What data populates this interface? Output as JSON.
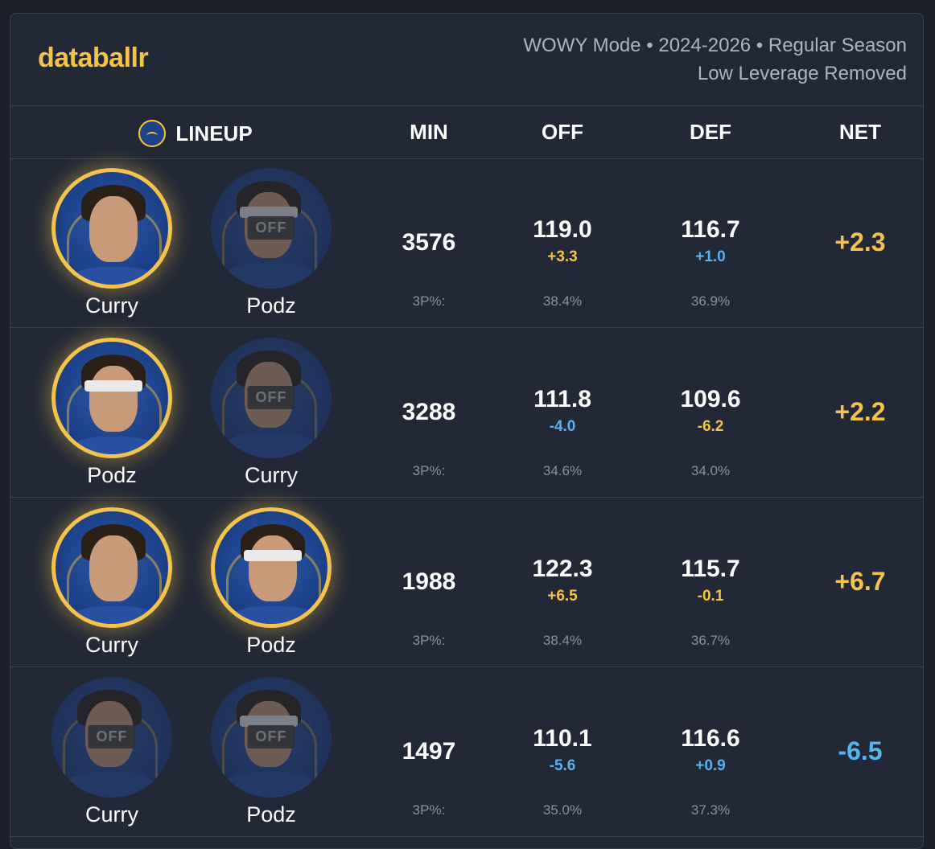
{
  "header": {
    "logo": "databallr",
    "meta_line1": "WOWY Mode • 2024-2026 • Regular Season",
    "meta_line2": "Low Leverage Removed"
  },
  "columns": {
    "lineup": "LINEUP",
    "min": "MIN",
    "off": "OFF",
    "def": "DEF",
    "net": "NET",
    "team_logo_icon": "warriors-logo-icon"
  },
  "colors": {
    "accent_yellow": "#f3c34d",
    "accent_blue": "#56b4f0",
    "background": "#222836"
  },
  "rows": [
    {
      "p1": {
        "name": "Curry",
        "status": "on",
        "off_label": ""
      },
      "p2": {
        "name": "Podz",
        "status": "off",
        "off_label": "OFF"
      },
      "min": "3576",
      "off": "119.0",
      "off_delta": "+3.3",
      "off_delta_color": "yellow",
      "def": "116.7",
      "def_delta": "+1.0",
      "def_delta_color": "blue",
      "net": "+2.3",
      "net_color": "yellow",
      "tp_label": "3P%:",
      "tp_off": "38.4%",
      "tp_def": "36.9%"
    },
    {
      "p1": {
        "name": "Podz",
        "status": "on",
        "off_label": ""
      },
      "p2": {
        "name": "Curry",
        "status": "off",
        "off_label": "OFF"
      },
      "min": "3288",
      "off": "111.8",
      "off_delta": "-4.0",
      "off_delta_color": "blue",
      "def": "109.6",
      "def_delta": "-6.2",
      "def_delta_color": "yellow",
      "net": "+2.2",
      "net_color": "yellow",
      "tp_label": "3P%:",
      "tp_off": "34.6%",
      "tp_def": "34.0%"
    },
    {
      "p1": {
        "name": "Curry",
        "status": "on",
        "off_label": ""
      },
      "p2": {
        "name": "Podz",
        "status": "on",
        "off_label": ""
      },
      "min": "1988",
      "off": "122.3",
      "off_delta": "+6.5",
      "off_delta_color": "yellow",
      "def": "115.7",
      "def_delta": "-0.1",
      "def_delta_color": "yellow",
      "net": "+6.7",
      "net_color": "yellow",
      "tp_label": "3P%:",
      "tp_off": "38.4%",
      "tp_def": "36.7%"
    },
    {
      "p1": {
        "name": "Curry",
        "status": "off",
        "off_label": "OFF"
      },
      "p2": {
        "name": "Podz",
        "status": "off",
        "off_label": "OFF"
      },
      "min": "1497",
      "off": "110.1",
      "off_delta": "-5.6",
      "off_delta_color": "blue",
      "def": "116.6",
      "def_delta": "+0.9",
      "def_delta_color": "blue",
      "net": "-6.5",
      "net_color": "blue",
      "tp_label": "3P%:",
      "tp_off": "35.0%",
      "tp_def": "37.3%"
    }
  ]
}
